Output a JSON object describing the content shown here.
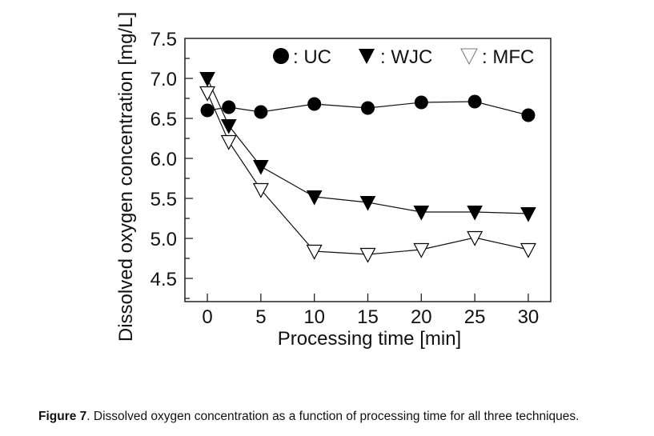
{
  "chart_data": {
    "type": "line",
    "title": "",
    "xlabel": "Processing time [min]",
    "ylabel": "Dissolved oxygen concentration [mg/L]",
    "xlim": [
      -2.1,
      32.1
    ],
    "ylim": [
      4.21,
      7.5
    ],
    "xticks": [
      0,
      5,
      10,
      15,
      20,
      25,
      30
    ],
    "xtick_labels": [
      "0",
      "5",
      "10",
      "15",
      "20",
      "25",
      "30"
    ],
    "yticks": [
      4.5,
      5.0,
      5.5,
      6.0,
      6.5,
      7.0,
      7.5
    ],
    "ytick_labels": [
      "4.5",
      "5.0",
      "5.5",
      "6.0",
      "6.5",
      "7.0",
      "7.5"
    ],
    "yminor_ticks": [
      4.25,
      4.75,
      5.25,
      5.75,
      6.25,
      6.75,
      7.25
    ],
    "grid": false,
    "legend_position": "top-right",
    "x": [
      0,
      2,
      5,
      10,
      15,
      20,
      25,
      30
    ],
    "series": [
      {
        "name": "UC",
        "legend_label": ": UC",
        "marker": "filled-circle",
        "color": "#000000",
        "values": [
          6.6,
          6.64,
          6.58,
          6.68,
          6.63,
          6.7,
          6.71,
          6.54
        ]
      },
      {
        "name": "WJC",
        "legend_label": ": WJC",
        "marker": "filled-down-triangle",
        "color": "#000000",
        "values": [
          7.0,
          6.41,
          5.9,
          5.52,
          5.45,
          5.33,
          5.33,
          5.31
        ]
      },
      {
        "name": "MFC",
        "legend_label": ": MFC",
        "marker": "open-down-triangle",
        "color": "#000000",
        "values": [
          6.82,
          6.21,
          5.61,
          4.84,
          4.8,
          4.86,
          5.01,
          4.86
        ]
      }
    ]
  },
  "caption": {
    "label": "Figure 7",
    "text": ". Dissolved oxygen concentration as a function of processing time for all three techniques."
  }
}
